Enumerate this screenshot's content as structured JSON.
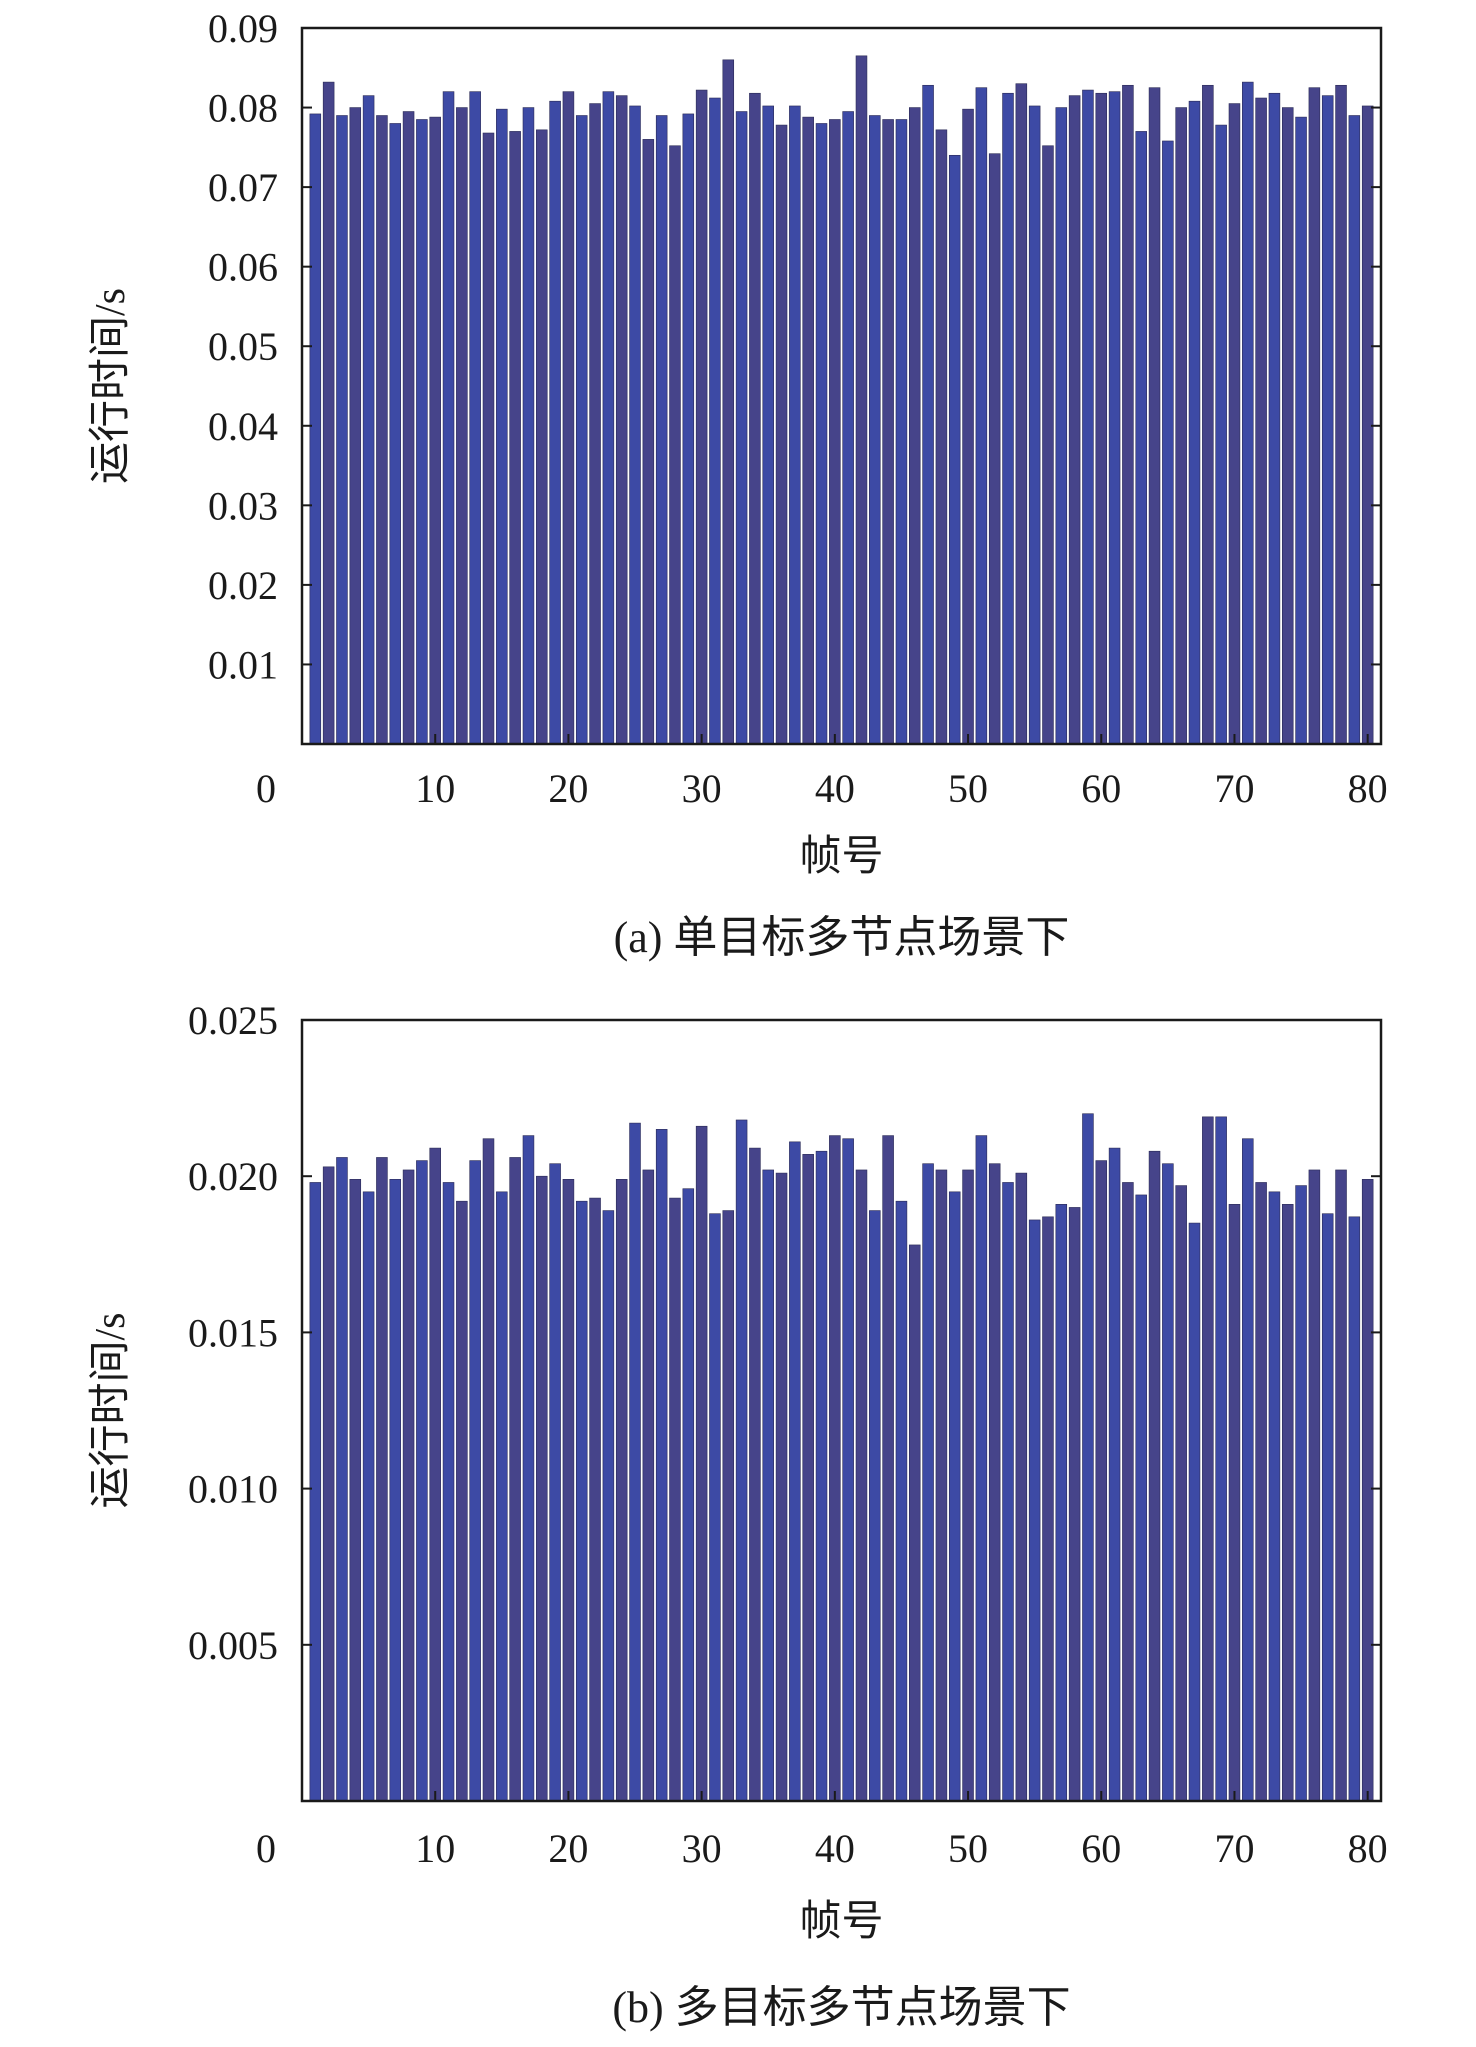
{
  "chart_data": [
    {
      "type": "bar",
      "caption": "(a) 单目标多节点场景下",
      "xlabel": "帧号",
      "ylabel": "运行时间/s",
      "xlim": [
        0,
        81
      ],
      "ylim": [
        0,
        0.09
      ],
      "x_ticks": [
        0,
        10,
        20,
        30,
        40,
        50,
        60,
        70,
        80
      ],
      "x_tick_labels": [
        "0",
        "10",
        "20",
        "30",
        "40",
        "50",
        "60",
        "70",
        "80"
      ],
      "y_ticks": [
        0.01,
        0.02,
        0.03,
        0.04,
        0.05,
        0.06,
        0.07,
        0.08,
        0.09
      ],
      "y_tick_labels": [
        "0.01",
        "0.02",
        "0.03",
        "0.04",
        "0.05",
        "0.06",
        "0.07",
        "0.08",
        "0.09"
      ],
      "bar_colors": [
        "#3d4aa5",
        "#46448a"
      ],
      "categories": [
        1,
        2,
        3,
        4,
        5,
        6,
        7,
        8,
        9,
        10,
        11,
        12,
        13,
        14,
        15,
        16,
        17,
        18,
        19,
        20,
        21,
        22,
        23,
        24,
        25,
        26,
        27,
        28,
        29,
        30,
        31,
        32,
        33,
        34,
        35,
        36,
        37,
        38,
        39,
        40,
        41,
        42,
        43,
        44,
        45,
        46,
        47,
        48,
        49,
        50,
        51,
        52,
        53,
        54,
        55,
        56,
        57,
        58,
        59,
        60,
        61,
        62,
        63,
        64,
        65,
        66,
        67,
        68,
        69,
        70,
        71,
        72,
        73,
        74,
        75,
        76,
        77,
        78,
        79,
        80
      ],
      "values": [
        0.0792,
        0.0832,
        0.079,
        0.08,
        0.0815,
        0.079,
        0.078,
        0.0795,
        0.0785,
        0.0788,
        0.082,
        0.08,
        0.082,
        0.0768,
        0.0798,
        0.077,
        0.08,
        0.0772,
        0.0808,
        0.082,
        0.079,
        0.0805,
        0.082,
        0.0815,
        0.0802,
        0.076,
        0.079,
        0.0752,
        0.0792,
        0.0822,
        0.0812,
        0.086,
        0.0795,
        0.0818,
        0.0802,
        0.0778,
        0.0802,
        0.0788,
        0.078,
        0.0785,
        0.0795,
        0.0865,
        0.079,
        0.0785,
        0.0785,
        0.08,
        0.0828,
        0.0772,
        0.074,
        0.0798,
        0.0825,
        0.0742,
        0.0818,
        0.083,
        0.0802,
        0.0752,
        0.08,
        0.0815,
        0.0822,
        0.0818,
        0.082,
        0.0828,
        0.077,
        0.0825,
        0.0758,
        0.08,
        0.0808,
        0.0828,
        0.0778,
        0.0805,
        0.0832,
        0.0812,
        0.0818,
        0.08,
        0.0788,
        0.0825,
        0.0815,
        0.0828,
        0.079,
        0.0802
      ]
    },
    {
      "type": "bar",
      "caption": "(b) 多目标多节点场景下",
      "xlabel": "帧号",
      "ylabel": "运行时间/s",
      "xlim": [
        0,
        81
      ],
      "ylim": [
        0,
        0.025
      ],
      "x_ticks": [
        0,
        10,
        20,
        30,
        40,
        50,
        60,
        70,
        80
      ],
      "x_tick_labels": [
        "0",
        "10",
        "20",
        "30",
        "40",
        "50",
        "60",
        "70",
        "80"
      ],
      "y_ticks": [
        0.005,
        0.01,
        0.015,
        0.02,
        0.025
      ],
      "y_tick_labels": [
        "0.005",
        "0.010",
        "0.015",
        "0.020",
        "0.025"
      ],
      "bar_colors": [
        "#3d4aa5",
        "#46448a"
      ],
      "categories": [
        1,
        2,
        3,
        4,
        5,
        6,
        7,
        8,
        9,
        10,
        11,
        12,
        13,
        14,
        15,
        16,
        17,
        18,
        19,
        20,
        21,
        22,
        23,
        24,
        25,
        26,
        27,
        28,
        29,
        30,
        31,
        32,
        33,
        34,
        35,
        36,
        37,
        38,
        39,
        40,
        41,
        42,
        43,
        44,
        45,
        46,
        47,
        48,
        49,
        50,
        51,
        52,
        53,
        54,
        55,
        56,
        57,
        58,
        59,
        60,
        61,
        62,
        63,
        64,
        65,
        66,
        67,
        68,
        69,
        70,
        71,
        72,
        73,
        74,
        75,
        76,
        77,
        78,
        79,
        80
      ],
      "values": [
        0.0198,
        0.0203,
        0.0206,
        0.0199,
        0.0195,
        0.0206,
        0.0199,
        0.0202,
        0.0205,
        0.0209,
        0.0198,
        0.0192,
        0.0205,
        0.0212,
        0.0195,
        0.0206,
        0.0213,
        0.02,
        0.0204,
        0.0199,
        0.0192,
        0.0193,
        0.0189,
        0.0199,
        0.0217,
        0.0202,
        0.0215,
        0.0193,
        0.0196,
        0.0216,
        0.0188,
        0.0189,
        0.0218,
        0.0209,
        0.0202,
        0.0201,
        0.0211,
        0.0207,
        0.0208,
        0.0213,
        0.0212,
        0.0202,
        0.0189,
        0.0213,
        0.0192,
        0.0178,
        0.0204,
        0.0202,
        0.0195,
        0.0202,
        0.0213,
        0.0204,
        0.0198,
        0.0201,
        0.0186,
        0.0187,
        0.0191,
        0.019,
        0.022,
        0.0205,
        0.0209,
        0.0198,
        0.0194,
        0.0208,
        0.0204,
        0.0197,
        0.0185,
        0.0219,
        0.0219,
        0.0191,
        0.0212,
        0.0198,
        0.0195,
        0.0191,
        0.0197,
        0.0202,
        0.0188,
        0.0202,
        0.0187,
        0.0199
      ]
    }
  ]
}
